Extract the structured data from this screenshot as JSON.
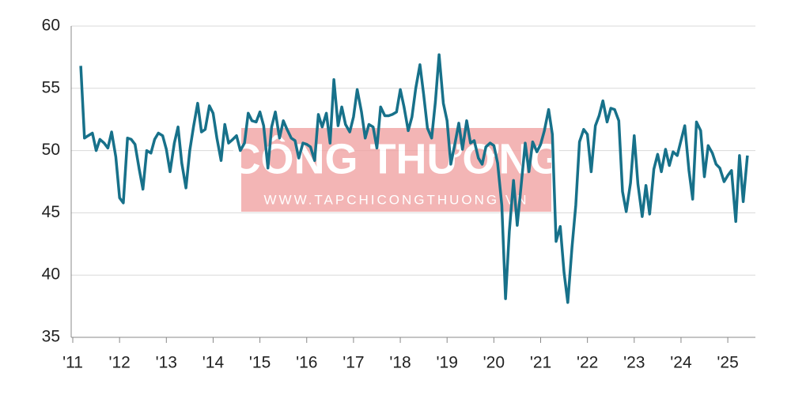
{
  "chart_data": {
    "type": "line",
    "watermark": {
      "title": "CÔNG THƯƠNG",
      "url": "WWW.TAPCHICONGTHUONG.VN"
    },
    "xlim": [
      2011,
      2025.6
    ],
    "xticks": [
      {
        "value": 2011,
        "label": "'11"
      },
      {
        "value": 2012,
        "label": "'12"
      },
      {
        "value": 2013,
        "label": "'13"
      },
      {
        "value": 2014,
        "label": "'14"
      },
      {
        "value": 2015,
        "label": "'15"
      },
      {
        "value": 2016,
        "label": "'16"
      },
      {
        "value": 2017,
        "label": "'17"
      },
      {
        "value": 2018,
        "label": "'18"
      },
      {
        "value": 2019,
        "label": "'19"
      },
      {
        "value": 2020,
        "label": "'20"
      },
      {
        "value": 2021,
        "label": "'21"
      },
      {
        "value": 2022,
        "label": "'22"
      },
      {
        "value": 2023,
        "label": "'23"
      },
      {
        "value": 2024,
        "label": "'24"
      },
      {
        "value": 2025,
        "label": "'25"
      }
    ],
    "ylim": [
      35,
      60
    ],
    "yticks": [
      35,
      40,
      45,
      50,
      55,
      60
    ],
    "grid": true,
    "x": [
      2011.17,
      2011.25,
      2011.33,
      2011.42,
      2011.5,
      2011.58,
      2011.67,
      2011.75,
      2011.83,
      2011.92,
      2012,
      2012.08,
      2012.17,
      2012.25,
      2012.33,
      2012.42,
      2012.5,
      2012.58,
      2012.67,
      2012.75,
      2012.83,
      2012.92,
      2013,
      2013.08,
      2013.17,
      2013.25,
      2013.33,
      2013.42,
      2013.5,
      2013.58,
      2013.67,
      2013.75,
      2013.83,
      2013.92,
      2014,
      2014.08,
      2014.17,
      2014.25,
      2014.33,
      2014.42,
      2014.5,
      2014.58,
      2014.67,
      2014.75,
      2014.83,
      2014.92,
      2015,
      2015.08,
      2015.17,
      2015.25,
      2015.33,
      2015.42,
      2015.5,
      2015.58,
      2015.67,
      2015.75,
      2015.83,
      2015.92,
      2016,
      2016.08,
      2016.17,
      2016.25,
      2016.33,
      2016.42,
      2016.5,
      2016.58,
      2016.67,
      2016.75,
      2016.83,
      2016.92,
      2017,
      2017.08,
      2017.17,
      2017.25,
      2017.33,
      2017.42,
      2017.5,
      2017.58,
      2017.67,
      2017.75,
      2017.83,
      2017.92,
      2018,
      2018.08,
      2018.17,
      2018.25,
      2018.33,
      2018.42,
      2018.5,
      2018.58,
      2018.67,
      2018.75,
      2018.83,
      2018.92,
      2019,
      2019.08,
      2019.17,
      2019.25,
      2019.33,
      2019.42,
      2019.5,
      2019.58,
      2019.67,
      2019.75,
      2019.83,
      2019.92,
      2020,
      2020.08,
      2020.17,
      2020.25,
      2020.33,
      2020.42,
      2020.5,
      2020.58,
      2020.67,
      2020.75,
      2020.83,
      2020.92,
      2021,
      2021.08,
      2021.17,
      2021.25,
      2021.33,
      2021.42,
      2021.5,
      2021.58,
      2021.67,
      2021.75,
      2021.83,
      2021.92,
      2022,
      2022.08,
      2022.17,
      2022.25,
      2022.33,
      2022.42,
      2022.5,
      2022.58,
      2022.67,
      2022.75,
      2022.83,
      2022.92,
      2023,
      2023.08,
      2023.17,
      2023.25,
      2023.33,
      2023.42,
      2023.5,
      2023.58,
      2023.67,
      2023.75,
      2023.83,
      2023.92,
      2024,
      2024.08,
      2024.17,
      2024.25,
      2024.33,
      2024.42,
      2024.5,
      2024.58,
      2024.67,
      2024.75,
      2024.83,
      2024.92,
      2025,
      2025.08,
      2025.17,
      2025.25,
      2025.33,
      2025.42
    ],
    "series": [
      {
        "color": "#17718a",
        "values": [
          56.8,
          51.0,
          51.2,
          51.4,
          50.0,
          50.9,
          50.6,
          50.2,
          51.5,
          49.5,
          46.2,
          45.8,
          51.0,
          50.9,
          50.5,
          48.5,
          46.9,
          50.0,
          49.8,
          50.9,
          51.4,
          51.2,
          50.1,
          48.3,
          50.6,
          51.9,
          49.0,
          47.0,
          50.0,
          51.9,
          53.8,
          51.5,
          51.7,
          53.6,
          53.0,
          51.0,
          49.2,
          52.1,
          50.6,
          50.9,
          51.2,
          50.0,
          50.6,
          53.0,
          52.4,
          52.3,
          53.1,
          52.0,
          48.6,
          51.9,
          53.1,
          51.0,
          52.4,
          51.7,
          51.0,
          50.8,
          49.4,
          50.6,
          50.5,
          50.3,
          49.2,
          52.9,
          51.9,
          53.0,
          50.6,
          55.7,
          52.0,
          53.5,
          52.1,
          51.5,
          52.7,
          54.9,
          53.1,
          51.0,
          52.1,
          51.9,
          50.2,
          53.5,
          52.8,
          52.8,
          52.9,
          53.1,
          54.9,
          53.5,
          51.6,
          52.7,
          55.0,
          56.9,
          54.5,
          51.8,
          51.0,
          53.9,
          57.7,
          53.8,
          52.4,
          48.9,
          50.6,
          52.2,
          50.1,
          52.4,
          50.6,
          50.8,
          49.4,
          48.9,
          50.3,
          50.6,
          50.4,
          49.0,
          45.6,
          38.1,
          43.5,
          47.6,
          44.0,
          47.1,
          50.6,
          48.3,
          50.7,
          49.9,
          50.5,
          51.6,
          53.3,
          51.3,
          42.7,
          43.9,
          40.2,
          37.8,
          42.2,
          45.6,
          50.7,
          51.7,
          51.3,
          48.3,
          52.0,
          52.8,
          54.0,
          52.3,
          53.4,
          53.3,
          52.4,
          46.7,
          45.1,
          47.4,
          51.2,
          47.3,
          44.7,
          47.2,
          44.9,
          48.5,
          49.7,
          48.3,
          50.1,
          48.8,
          49.9,
          49.6,
          50.8,
          52.0,
          48.4,
          46.1,
          52.3,
          51.6,
          47.9,
          50.4,
          49.8,
          48.9,
          48.6,
          47.5,
          48.0,
          48.4,
          44.3,
          49.6,
          45.9,
          49.6
        ]
      }
    ]
  }
}
